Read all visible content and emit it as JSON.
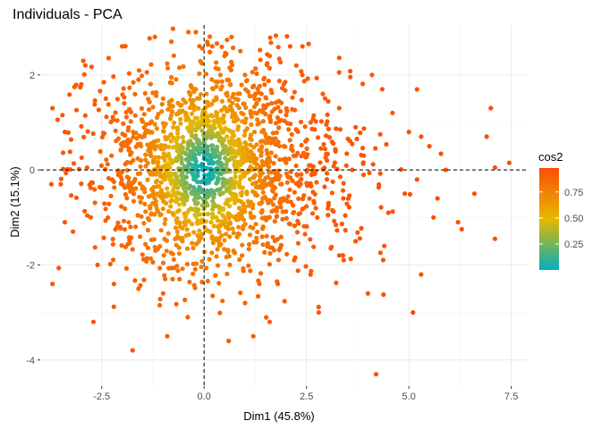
{
  "chart_data": {
    "type": "scatter",
    "title": "Individuals - PCA",
    "xlabel": "Dim1 (45.8%)",
    "ylabel": "Dim2 (15.1%)",
    "xlim": [
      -4.0,
      7.9
    ],
    "ylim": [
      -4.55,
      3.05
    ],
    "x_ticks": [
      -2.5,
      0.0,
      2.5,
      5.0,
      7.5
    ],
    "x_tick_labels": [
      "-2.5",
      "0.0",
      "2.5",
      "5.0",
      "7.5"
    ],
    "y_ticks": [
      -4,
      -2,
      0,
      2
    ],
    "y_tick_labels": [
      "-4",
      "-2",
      "0",
      "2"
    ],
    "reference_lines": {
      "x": 0,
      "y": 0
    },
    "grid": true,
    "legend": {
      "title": "cos2",
      "position": "right",
      "ticks": [
        0.25,
        0.5,
        0.75
      ],
      "tick_labels": [
        "0.25",
        "0.50",
        "0.75"
      ],
      "range": [
        0.0,
        0.98
      ],
      "gradient_colors": [
        "#00AFBB",
        "#E7B800",
        "#FC4E07"
      ]
    },
    "points_shown": "about 2000 individuals",
    "points": [
      [
        7.45,
        0.15
      ],
      [
        7.1,
        0.05
      ],
      [
        7.0,
        1.3
      ],
      [
        6.9,
        0.7
      ],
      [
        7.1,
        -1.45
      ],
      [
        6.6,
        -0.5
      ],
      [
        6.2,
        -1.1
      ],
      [
        5.9,
        0.0
      ],
      [
        5.7,
        -0.6
      ],
      [
        5.6,
        -1.0
      ],
      [
        5.5,
        0.5
      ],
      [
        5.3,
        0.7
      ],
      [
        5.2,
        -0.2
      ],
      [
        5.0,
        0.8
      ],
      [
        4.9,
        -0.5
      ],
      [
        4.5,
        -0.9
      ],
      [
        4.4,
        -1.6
      ],
      [
        4.3,
        0.75
      ],
      [
        4.2,
        -4.3
      ],
      [
        4.0,
        -2.6
      ],
      [
        3.9,
        0.3
      ],
      [
        5.1,
        -3.0
      ],
      [
        5.3,
        -2.2
      ],
      [
        4.6,
        1.2
      ],
      [
        4.35,
        1.7
      ],
      [
        4.1,
        2.0
      ],
      [
        3.7,
        0.9
      ],
      [
        3.4,
        -0.6
      ],
      [
        3.0,
        0.2
      ],
      [
        2.6,
        1.0
      ],
      [
        2.2,
        -1.9
      ],
      [
        2.8,
        -3.0
      ],
      [
        1.6,
        -3.2
      ],
      [
        1.2,
        -3.5
      ],
      [
        0.6,
        -3.6
      ],
      [
        -0.4,
        -3.1
      ],
      [
        -0.9,
        -3.5
      ],
      [
        -2.7,
        -3.2
      ],
      [
        -3.7,
        -2.4
      ],
      [
        -3.7,
        1.3
      ],
      [
        -1.2,
        2.8
      ],
      [
        -0.8,
        2.7
      ],
      [
        -0.2,
        2.9
      ],
      [
        0.2,
        2.6
      ],
      [
        0.5,
        2.4
      ],
      [
        1.6,
        2.4
      ],
      [
        2.1,
        2.6
      ],
      [
        -2.0,
        2.6
      ],
      [
        -2.9,
        2.2
      ],
      [
        -3.0,
        1.8
      ],
      [
        -3.4,
        0.8
      ],
      [
        -3.5,
        -0.3
      ],
      [
        -3.4,
        -1.1
      ],
      [
        -3.2,
        -1.3
      ],
      [
        -2.6,
        -2.0
      ],
      [
        -2.2,
        -2.4
      ],
      [
        -1.6,
        -2.5
      ],
      [
        -1.0,
        -2.6
      ],
      [
        -0.6,
        -2.3
      ],
      [
        1.0,
        -2.8
      ],
      [
        1.8,
        -2.4
      ],
      [
        2.6,
        -2.2
      ],
      [
        3.3,
        -1.8
      ],
      [
        3.7,
        -1.5
      ],
      [
        2.4,
        2.0
      ],
      [
        2.9,
        1.6
      ],
      [
        3.3,
        1.3
      ],
      [
        1.0,
        2.0
      ],
      [
        -1.6,
        1.9
      ],
      [
        -2.4,
        1.5
      ],
      [
        -0.2,
        1.7
      ],
      [
        0.4,
        2.0
      ],
      [
        -1.0,
        1.5
      ],
      [
        1.4,
        1.6
      ]
    ]
  }
}
